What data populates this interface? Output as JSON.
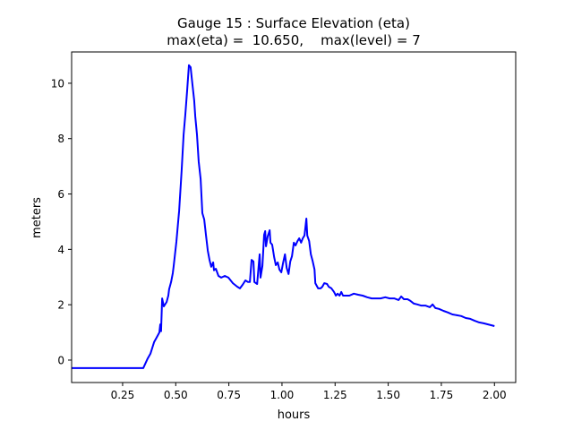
{
  "chart_data": {
    "type": "line",
    "title": "Gauge 15 : Surface Elevation (eta)",
    "subtitle": "max(eta) =  10.650,    max(level) = 7",
    "xlabel": "hours",
    "ylabel": "meters",
    "xlim": [
      0.01,
      2.1
    ],
    "ylim": [
      -0.81,
      11.13
    ],
    "xticks": [
      0.25,
      0.5,
      0.75,
      1.0,
      1.25,
      1.5,
      1.75,
      2.0
    ],
    "xtick_labels": [
      "0.25",
      "0.50",
      "0.75",
      "1.00",
      "1.25",
      "1.50",
      "1.75",
      "2.00"
    ],
    "yticks": [
      0,
      2,
      4,
      6,
      8,
      10
    ],
    "ytick_labels": [
      "0",
      "2",
      "4",
      "6",
      "8",
      "10"
    ],
    "grid": false,
    "series": [
      {
        "name": "eta",
        "color": "#0000ff",
        "x": [
          0.01,
          0.347,
          0.368,
          0.381,
          0.398,
          0.41,
          0.423,
          0.427,
          0.431,
          0.436,
          0.444,
          0.457,
          0.465,
          0.469,
          0.478,
          0.486,
          0.49,
          0.503,
          0.516,
          0.528,
          0.537,
          0.545,
          0.554,
          0.562,
          0.57,
          0.579,
          0.587,
          0.592,
          0.6,
          0.608,
          0.617,
          0.625,
          0.634,
          0.642,
          0.651,
          0.659,
          0.667,
          0.676,
          0.68,
          0.689,
          0.701,
          0.714,
          0.731,
          0.748,
          0.769,
          0.79,
          0.802,
          0.815,
          0.828,
          0.84,
          0.849,
          0.857,
          0.866,
          0.87,
          0.883,
          0.895,
          0.899,
          0.908,
          0.916,
          0.921,
          0.925,
          0.933,
          0.942,
          0.946,
          0.954,
          0.963,
          0.971,
          0.98,
          0.988,
          0.997,
          1.005,
          1.014,
          1.022,
          1.031,
          1.039,
          1.047,
          1.056,
          1.064,
          1.073,
          1.081,
          1.09,
          1.098,
          1.106,
          1.115,
          1.119,
          1.128,
          1.136,
          1.144,
          1.153,
          1.157,
          1.17,
          1.182,
          1.19,
          1.199,
          1.212,
          1.22,
          1.233,
          1.245,
          1.254,
          1.262,
          1.271,
          1.279,
          1.287,
          1.3,
          1.317,
          1.338,
          1.359,
          1.38,
          1.401,
          1.422,
          1.443,
          1.464,
          1.486,
          1.507,
          1.528,
          1.549,
          1.561,
          1.574,
          1.591,
          1.604,
          1.621,
          1.637,
          1.654,
          1.675,
          1.696,
          1.709,
          1.722,
          1.739,
          1.76,
          1.781,
          1.802,
          1.823,
          1.844,
          1.865,
          1.886,
          1.907,
          1.928,
          1.949,
          1.97,
          2.0
        ],
        "y": [
          -0.29,
          -0.29,
          0.06,
          0.23,
          0.65,
          0.81,
          1.0,
          1.29,
          1.04,
          2.23,
          1.94,
          2.1,
          2.33,
          2.56,
          2.82,
          3.14,
          3.37,
          4.27,
          5.4,
          6.86,
          8.15,
          8.87,
          9.77,
          10.65,
          10.58,
          9.94,
          9.38,
          8.8,
          8.15,
          7.18,
          6.54,
          5.31,
          5.08,
          4.53,
          3.95,
          3.62,
          3.37,
          3.53,
          3.24,
          3.3,
          3.04,
          2.98,
          3.04,
          2.98,
          2.78,
          2.65,
          2.59,
          2.72,
          2.88,
          2.82,
          2.82,
          3.62,
          3.56,
          2.82,
          2.75,
          3.82,
          2.98,
          3.4,
          4.53,
          4.66,
          4.11,
          4.47,
          4.69,
          4.24,
          4.17,
          3.72,
          3.43,
          3.53,
          3.27,
          3.17,
          3.5,
          3.82,
          3.33,
          3.11,
          3.56,
          3.75,
          4.24,
          4.14,
          4.3,
          4.4,
          4.24,
          4.4,
          4.5,
          5.11,
          4.5,
          4.3,
          3.82,
          3.59,
          3.27,
          2.78,
          2.59,
          2.59,
          2.65,
          2.78,
          2.75,
          2.65,
          2.59,
          2.46,
          2.33,
          2.4,
          2.33,
          2.46,
          2.33,
          2.33,
          2.33,
          2.4,
          2.36,
          2.33,
          2.27,
          2.23,
          2.23,
          2.23,
          2.27,
          2.23,
          2.23,
          2.17,
          2.3,
          2.2,
          2.2,
          2.14,
          2.04,
          2.01,
          1.97,
          1.97,
          1.91,
          2.01,
          1.88,
          1.85,
          1.78,
          1.72,
          1.65,
          1.62,
          1.59,
          1.52,
          1.49,
          1.42,
          1.36,
          1.33,
          1.29,
          1.23
        ]
      }
    ]
  }
}
